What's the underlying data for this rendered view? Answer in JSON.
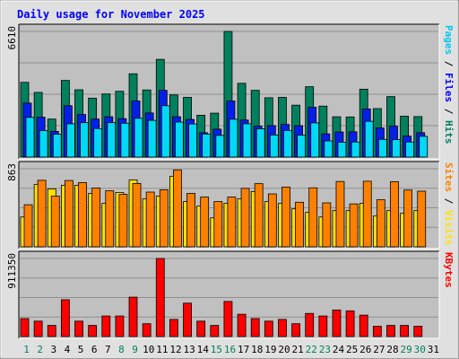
{
  "chart_data": {
    "type": "bar",
    "title": "Daily usage for November 2025",
    "x": [
      1,
      2,
      3,
      4,
      5,
      6,
      7,
      8,
      9,
      10,
      11,
      12,
      13,
      14,
      15,
      16,
      17,
      18,
      19,
      20,
      21,
      22,
      23,
      24,
      25,
      26,
      27,
      28,
      29,
      30,
      31
    ],
    "weekend_days": [
      1,
      2,
      8,
      9,
      15,
      16,
      22,
      23,
      29,
      30
    ],
    "panels": [
      {
        "id": "hits-files-pages",
        "max_label": "6610",
        "ymax": 6610,
        "axis_label_parts": [
          {
            "text": "Pages",
            "color": "#00c8f0"
          },
          {
            "text": " / ",
            "color": "#000000"
          },
          {
            "text": "Files",
            "color": "#0000ff"
          },
          {
            "text": " / ",
            "color": "#000000"
          },
          {
            "text": "Hits",
            "color": "#008060"
          }
        ],
        "series": [
          {
            "name": "Hits",
            "color": "#00805c",
            "values": [
              3930,
              3400,
              2000,
              4030,
              3540,
              3100,
              3320,
              3460,
              4380,
              3530,
              5140,
              3270,
              3140,
              2200,
              2310,
              6610,
              3880,
              3510,
              3120,
              3140,
              2730,
              3700,
              2680,
              2120,
              2110,
              3570,
              2550,
              3180,
              2150,
              2130,
              0
            ]
          },
          {
            "name": "Files",
            "color": "#0020e8",
            "values": [
              2840,
              2100,
              1350,
              2700,
              2240,
              2000,
              2120,
              2020,
              2950,
              2320,
              3510,
              2120,
              1980,
              1280,
              1470,
              2950,
              1950,
              1620,
              1650,
              1720,
              1650,
              2620,
              1220,
              1320,
              1330,
              2530,
              1530,
              1620,
              1100,
              1280,
              0
            ]
          },
          {
            "name": "Pages",
            "color": "#00d8f8",
            "values": [
              2090,
              1390,
              1200,
              1750,
              1810,
              1500,
              1810,
              1780,
              2040,
              1930,
              2700,
              1840,
              1740,
              1210,
              1140,
              1990,
              1750,
              1490,
              1160,
              1400,
              1150,
              1800,
              850,
              780,
              790,
              1880,
              930,
              920,
              790,
              1090,
              0
            ]
          }
        ]
      },
      {
        "id": "visits-sites",
        "max_label": "863",
        "ymax": 863,
        "axis_label_parts": [
          {
            "text": "Sites",
            "color": "#ff8000"
          },
          {
            "text": " / ",
            "color": "#000000"
          },
          {
            "text": "Visits",
            "color": "#ffe000"
          }
        ],
        "series": [
          {
            "name": "Visits",
            "color": "#ffe000",
            "values": [
              330,
              690,
              640,
              680,
              680,
              590,
              480,
              600,
              740,
              530,
              560,
              780,
              500,
              450,
              320,
              480,
              530,
              610,
              500,
              480,
              420,
              380,
              330,
              400,
              400,
              480,
              340,
              400,
              370,
              400,
              0
            ]
          },
          {
            "name": "Sites",
            "color": "#ff8000",
            "values": [
              465,
              735,
              560,
              733,
              710,
              650,
              620,
              580,
              700,
              605,
              630,
              850,
              590,
              550,
              500,
              550,
              646,
              698,
              585,
              660,
              493,
              652,
              486,
              722,
              474,
              725,
              520,
              720,
              628,
              615,
              0
            ]
          }
        ]
      },
      {
        "id": "kbytes",
        "max_label": "911350",
        "ymax": 911350,
        "axis_label_parts": [
          {
            "text": "KBytes",
            "color": "#ff0000"
          }
        ],
        "series": [
          {
            "name": "KBytes",
            "color": "#ff0000",
            "values": [
              210000,
              180000,
              130000,
              430000,
              180000,
              130000,
              240000,
              240000,
              460000,
              150000,
              911350,
              200000,
              390000,
              180000,
              130000,
              410000,
              260000,
              210000,
              180000,
              200000,
              150000,
              270000,
              240000,
              310000,
              300000,
              250000,
              120000,
              130000,
              130000,
              120000,
              0
            ]
          }
        ]
      }
    ]
  }
}
